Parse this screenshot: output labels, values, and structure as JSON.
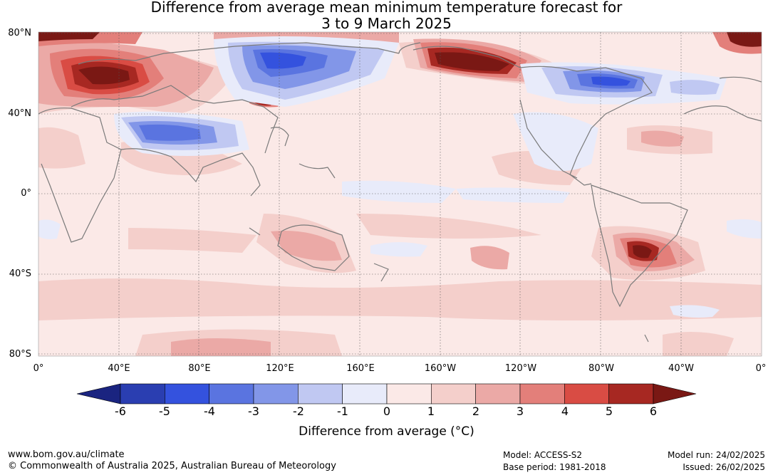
{
  "title": {
    "line1": "Difference from average mean minimum temperature forecast for",
    "line2": "3 to 9 March 2025"
  },
  "axes": {
    "lat_labels": [
      "80°N",
      "40°N",
      "0°",
      "40°S",
      "80°S"
    ],
    "lon_labels": [
      "0°",
      "40°E",
      "80°E",
      "120°E",
      "160°E",
      "160°W",
      "120°W",
      "80°W",
      "40°W",
      "0°"
    ]
  },
  "colorbar": {
    "ticks": [
      "-6",
      "-5",
      "-4",
      "-3",
      "-2",
      "-1",
      "0",
      "1",
      "2",
      "3",
      "4",
      "5",
      "6"
    ],
    "colors": [
      "#1a2480",
      "#2a3eb1",
      "#3452de",
      "#5a74e0",
      "#8296e8",
      "#c0c8f2",
      "#e8ebfa",
      "#fbe9e7",
      "#f4cfcb",
      "#eba9a6",
      "#e37f7a",
      "#d94c44",
      "#a72822",
      "#7a1814"
    ],
    "label": "Difference from average (°C)"
  },
  "footer": {
    "website": "www.bom.gov.au/climate",
    "copyright": "© Commonwealth of Australia 2025, Australian Bureau of Meteorology",
    "model": "Model: ACCESS-S2",
    "base_period": "Base period: 1981-2018",
    "model_run": "Model run: 24/02/2025",
    "issued": "Issued: 26/02/2025"
  }
}
